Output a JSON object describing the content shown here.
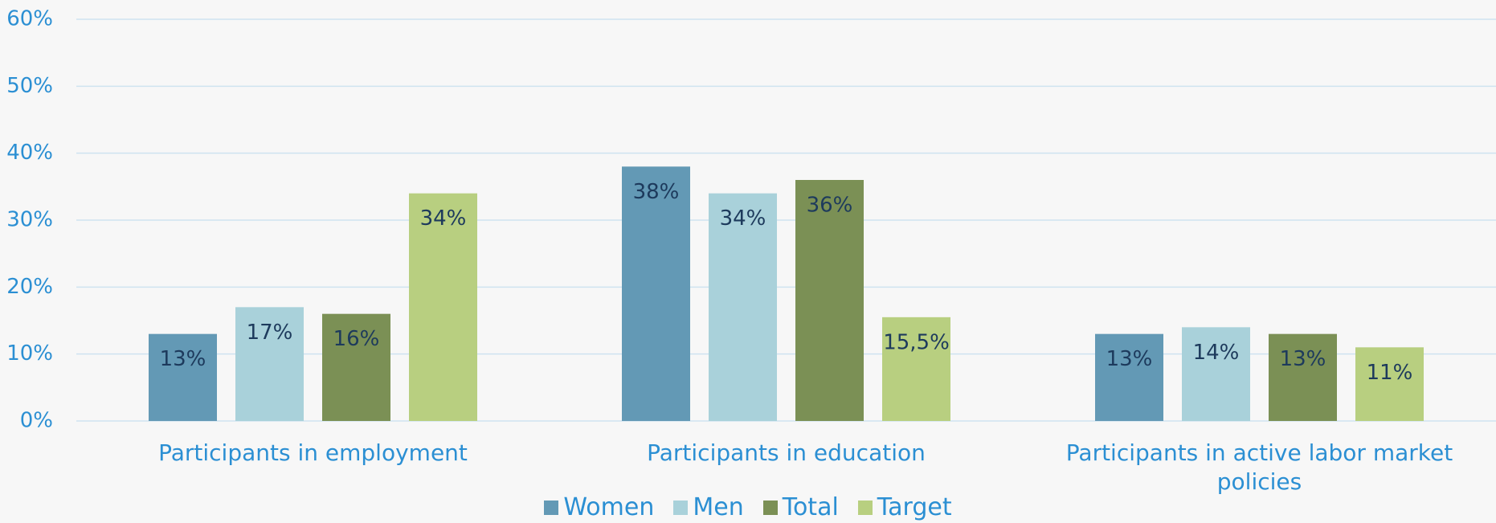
{
  "chart_data": {
    "type": "bar",
    "categories": [
      "Participants in employment",
      "Participants in education",
      "Participants in active labor market policies"
    ],
    "series": [
      {
        "name": "Women",
        "color": "#6399b5",
        "values": [
          13,
          38,
          13
        ],
        "value_labels": [
          "13%",
          "38%",
          "13%"
        ]
      },
      {
        "name": "Men",
        "color": "#a9d1da",
        "values": [
          17,
          34,
          14
        ],
        "value_labels": [
          "17%",
          "34%",
          "14%"
        ]
      },
      {
        "name": "Total",
        "color": "#7b9055",
        "values": [
          16,
          36,
          13
        ],
        "value_labels": [
          "16%",
          "36%",
          "13%"
        ]
      },
      {
        "name": "Target",
        "color": "#b8cf80",
        "values": [
          34,
          15.5,
          11
        ],
        "value_labels": [
          "34%",
          "15,5%",
          "11%"
        ]
      }
    ],
    "ylim": [
      0,
      60
    ],
    "yticks": [
      {
        "value": 0,
        "label": "0%"
      },
      {
        "value": 10,
        "label": "10%"
      },
      {
        "value": 20,
        "label": "20%"
      },
      {
        "value": 30,
        "label": "30%"
      },
      {
        "value": 40,
        "label": "40%"
      },
      {
        "value": 50,
        "label": "50%"
      },
      {
        "value": 60,
        "label": "60%"
      }
    ],
    "grid": true,
    "legend": "bottom"
  }
}
